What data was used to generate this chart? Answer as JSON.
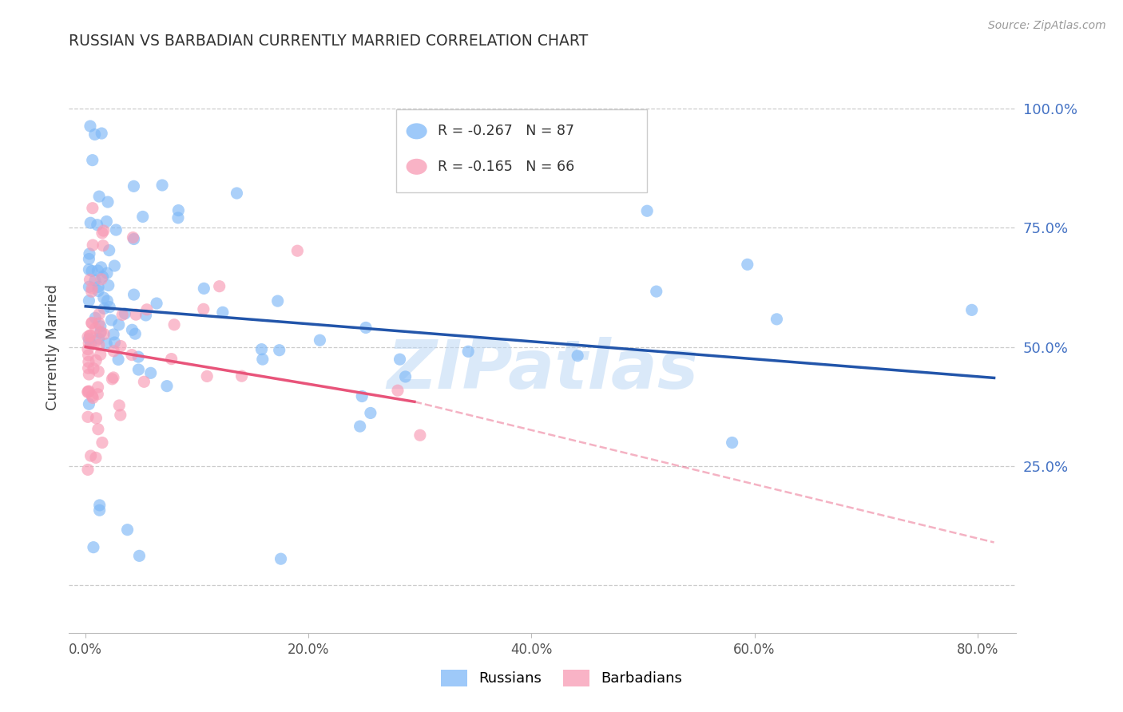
{
  "title": "RUSSIAN VS BARBADIAN CURRENTLY MARRIED CORRELATION CHART",
  "source": "Source: ZipAtlas.com",
  "ylabel": "Currently Married",
  "x_tick_labels": [
    "0.0%",
    "20.0%",
    "40.0%",
    "60.0%",
    "80.0%"
  ],
  "x_tick_values": [
    0.0,
    0.2,
    0.4,
    0.6,
    0.8
  ],
  "y_tick_labels": [
    "100.0%",
    "75.0%",
    "50.0%",
    "25.0%"
  ],
  "y_tick_values": [
    1.0,
    0.75,
    0.5,
    0.25
  ],
  "xlim": [
    -0.015,
    0.835
  ],
  "ylim": [
    -0.1,
    1.1
  ],
  "russian_color": "#7EB8F7",
  "barbadian_color": "#F89AB4",
  "russian_line_color": "#2255AA",
  "barbadian_line_color": "#E8547A",
  "russian_R": -0.267,
  "russian_N": 87,
  "barbadian_R": -0.165,
  "barbadian_N": 66,
  "legend_label_russian": "Russians",
  "legend_label_barbadian": "Barbadians",
  "watermark": "ZIPatlas",
  "watermark_color": "#BDD8F5",
  "grid_color": "#CCCCCC",
  "rus_line_x0": 0.0,
  "rus_line_x1": 0.815,
  "rus_line_y0": 0.585,
  "rus_line_y1": 0.435,
  "barb_line_solid_x0": 0.0,
  "barb_line_solid_x1": 0.295,
  "barb_line_solid_y0": 0.5,
  "barb_line_solid_y1": 0.385,
  "barb_line_dashed_x0": 0.295,
  "barb_line_dashed_x1": 0.815,
  "barb_line_dashed_y0": 0.385,
  "barb_line_dashed_y1": 0.09
}
